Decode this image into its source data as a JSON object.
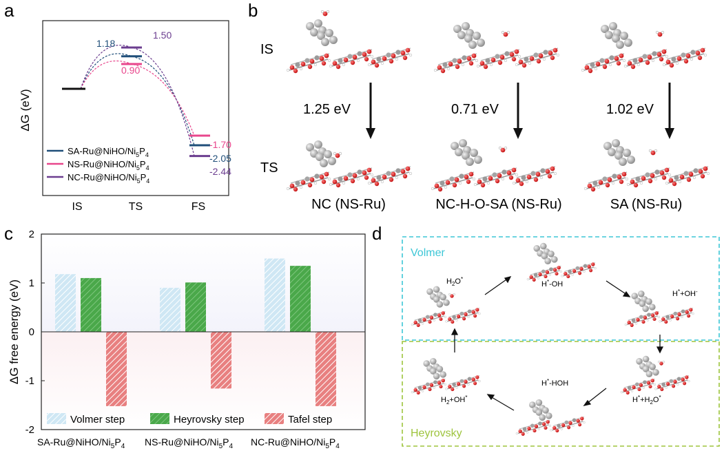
{
  "panel_labels": {
    "a": "a",
    "b": "b",
    "c": "c",
    "d": "d"
  },
  "panel_a": {
    "ylabel": "ΔG (eV)",
    "x_labels": [
      "IS",
      "TS",
      "FS"
    ],
    "legend": [
      {
        "base": "SA-Ru@NiHO/Ni",
        "sub1": "5",
        "mid": "P",
        "sub2": "4",
        "color": "#1f4e79"
      },
      {
        "base": "NS-Ru@NiHO/Ni",
        "sub1": "5",
        "mid": "P",
        "sub2": "4",
        "color": "#e8468c"
      },
      {
        "base": "NC-Ru@NiHO/Ni",
        "sub1": "5",
        "mid": "P",
        "sub2": "4",
        "color": "#6b3d8f"
      }
    ],
    "value_labels": {
      "sa_ts": "1.18",
      "nc_ts": "1.50",
      "ns_ts": "0.90",
      "ns_fs": "-1.70",
      "sa_fs": "-2.05",
      "nc_fs": "-2.44"
    }
  },
  "panel_b": {
    "state_labels": [
      "IS",
      "TS"
    ],
    "barriers": [
      "1.25 eV",
      "0.71 eV",
      "1.02 eV"
    ],
    "titles": [
      "NC (NS-Ru)",
      "NC-H-O-SA (NS-Ru)",
      "SA (NS-Ru)"
    ]
  },
  "panel_c": {
    "ylabel": "ΔG free energy (eV)",
    "categories": [
      {
        "base": "SA-Ru@NiHO/Ni",
        "sub1": "5",
        "mid": "P",
        "sub2": "4"
      },
      {
        "base": "NS-Ru@NiHO/Ni",
        "sub1": "5",
        "mid": "P",
        "sub2": "4"
      },
      {
        "base": "NC-Ru@NiHO/Ni",
        "sub1": "5",
        "mid": "P",
        "sub2": "4"
      }
    ]
  },
  "chart_data": [
    {
      "type": "line",
      "title": "",
      "xlabel": "",
      "ylabel": "ΔG (eV)",
      "x": [
        "IS",
        "TS",
        "FS"
      ],
      "series": [
        {
          "name": "SA-Ru@NiHO/Ni5P4",
          "values": [
            0,
            1.18,
            -2.05
          ],
          "color": "#1f4e79"
        },
        {
          "name": "NS-Ru@NiHO/Ni5P4",
          "values": [
            0,
            0.9,
            -1.7
          ],
          "color": "#e8468c"
        },
        {
          "name": "NC-Ru@NiHO/Ni5P4",
          "values": [
            0,
            1.5,
            -2.44
          ],
          "color": "#6b3d8f"
        }
      ],
      "ylim": [
        -2.9,
        2.1
      ],
      "grid": false,
      "legend": "bottom-left"
    },
    {
      "type": "bar",
      "title": "",
      "xlabel": "",
      "ylabel": "ΔG free energy (eV)",
      "categories": [
        "SA-Ru@NiHO/Ni5P4",
        "NS-Ru@NiHO/Ni5P4",
        "NC-Ru@NiHO/Ni5P4"
      ],
      "series": [
        {
          "name": "Volmer step",
          "values": [
            1.18,
            0.9,
            1.5
          ],
          "color": "#a9d3ea"
        },
        {
          "name": "Heyrovsky step",
          "values": [
            1.1,
            1.01,
            1.35
          ],
          "color": "#4aa84a"
        },
        {
          "name": "Tafel step",
          "values": [
            -1.52,
            -1.16,
            -1.52
          ],
          "color": "#e06a6a"
        }
      ],
      "ylim": [
        -2,
        2
      ],
      "yticks": [
        "2",
        "1",
        "0",
        "-1",
        "-2"
      ],
      "grid": false,
      "legend": "bottom"
    }
  ],
  "panel_d": {
    "volmer_label": "Volmer",
    "heyrovsky_label": "Heyrovsky",
    "volmer_color": "#3cc6d6",
    "heyrovsky_color": "#9dc43c",
    "states": {
      "h2o": {
        "base": "H",
        "sub": "2",
        "rest": "O",
        "sup": "*"
      },
      "hoh": {
        "base": "H",
        "sup": "*",
        "rest": "-OH"
      },
      "hplus_oh": {
        "base": "H",
        "sup": "*",
        "rest": "+OH",
        "sup2": "-"
      },
      "hhoh": {
        "base": "H",
        "sup": "*",
        "rest": "-HOH"
      },
      "h2_oh": {
        "base": "H",
        "sub": "2",
        "rest": "+OH",
        "sup": "*"
      },
      "h_h2o": {
        "base": "H",
        "sup": "*",
        "rest": "+H",
        "sub": "2",
        "rest2": "O",
        "sup2": "*"
      }
    }
  }
}
